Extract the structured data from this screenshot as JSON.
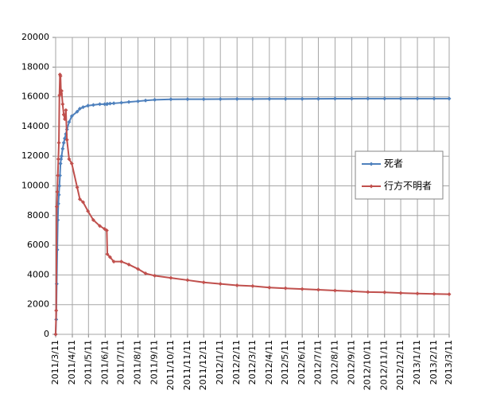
{
  "chart_data": {
    "type": "line",
    "x": [
      "2011/3/11",
      "2011/3/12",
      "2011/3/13",
      "2011/3/14",
      "2011/3/15",
      "2011/3/16",
      "2011/3/17",
      "2011/3/18",
      "2011/3/19",
      "2011/3/20",
      "2011/3/21",
      "2011/3/22",
      "2011/3/24",
      "2011/3/26",
      "2011/3/28",
      "2011/3/30",
      "2011/4/1",
      "2011/4/5",
      "2011/4/10",
      "2011/4/20",
      "2011/4/25",
      "2011/5/1",
      "2011/5/10",
      "2011/5/20",
      "2011/6/1",
      "2011/6/10",
      "2011/6/14",
      "2011/6/15",
      "2011/6/20",
      "2011/6/27",
      "2011/7/11",
      "2011/7/25",
      "2011/8/11",
      "2011/8/25",
      "2011/9/11",
      "2011/10/11",
      "2011/11/11",
      "2011/12/11",
      "2012/1/11",
      "2012/2/11",
      "2012/3/11",
      "2012/4/11",
      "2012/5/11",
      "2012/6/11",
      "2012/7/11",
      "2012/8/11",
      "2012/9/11",
      "2012/10/11",
      "2012/11/11",
      "2012/12/11",
      "2013/1/11",
      "2013/2/11",
      "2013/3/11"
    ],
    "series": [
      {
        "name": "死者",
        "color": "#4f81bd",
        "values": [
          0,
          1000,
          3400,
          5700,
          7700,
          8800,
          9400,
          10000,
          10700,
          11500,
          11800,
          12000,
          12500,
          12900,
          13200,
          13500,
          13800,
          14300,
          14700,
          15000,
          15200,
          15300,
          15400,
          15450,
          15500,
          15500,
          15500,
          15520,
          15540,
          15560,
          15600,
          15650,
          15700,
          15750,
          15800,
          15830,
          15840,
          15840,
          15845,
          15850,
          15850,
          15855,
          15860,
          15860,
          15865,
          15870,
          15870,
          15875,
          15880,
          15880,
          15880,
          15880,
          15880
        ]
      },
      {
        "name": "行方不明者",
        "color": "#c0504d",
        "values": [
          0,
          1600,
          8600,
          9600,
          10700,
          11800,
          12900,
          16100,
          17500,
          17400,
          16200,
          16400,
          15500,
          14800,
          14500,
          15100,
          13100,
          11800,
          11500,
          9900,
          9100,
          8900,
          8300,
          7700,
          7300,
          7100,
          7000,
          5400,
          5200,
          4900,
          4900,
          4700,
          4400,
          4100,
          3950,
          3800,
          3650,
          3500,
          3400,
          3300,
          3250,
          3150,
          3100,
          3050,
          3000,
          2950,
          2900,
          2850,
          2830,
          2780,
          2750,
          2720,
          2700
        ]
      }
    ],
    "xlim": [
      "2011/3/11",
      "2013/3/11"
    ],
    "xticks": [
      "2011/3/11",
      "2011/4/11",
      "2011/5/11",
      "2011/6/11",
      "2011/7/11",
      "2011/8/11",
      "2011/9/11",
      "2011/10/11",
      "2011/11/11",
      "2011/12/11",
      "2012/1/11",
      "2012/2/11",
      "2012/3/11",
      "2012/4/11",
      "2012/5/11",
      "2012/6/11",
      "2012/7/11",
      "2012/8/11",
      "2012/9/11",
      "2012/10/11",
      "2012/11/11",
      "2012/12/11",
      "2013/1/11",
      "2013/2/11",
      "2013/3/11"
    ],
    "ylim": [
      0,
      20000
    ],
    "yticks": [
      0,
      2000,
      4000,
      6000,
      8000,
      10000,
      12000,
      14000,
      16000,
      18000,
      20000
    ],
    "grid": true,
    "legend": "right"
  }
}
